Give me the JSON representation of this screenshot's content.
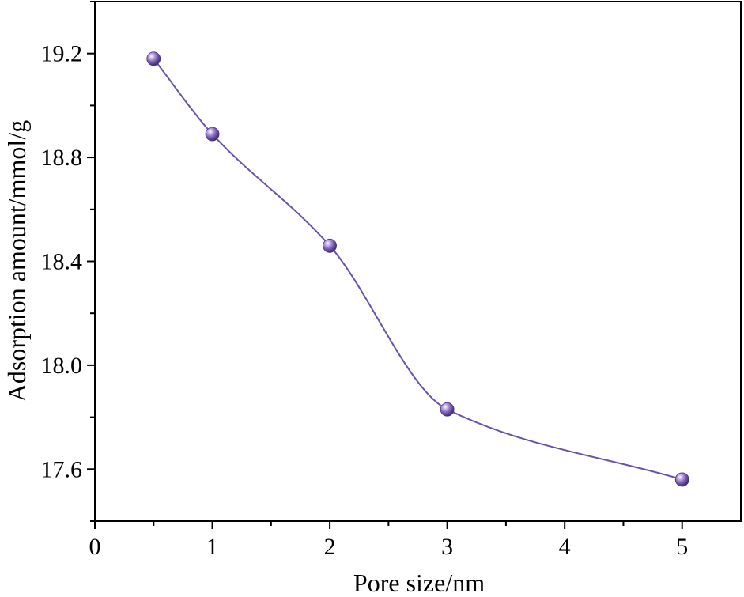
{
  "chart_data": {
    "type": "scatter",
    "title": "",
    "xlabel": "Pore size/nm",
    "ylabel": "Adsorption amount/mmol/g",
    "xlim": [
      0,
      5.5
    ],
    "ylim": [
      17.4,
      19.4
    ],
    "xticks": [
      0,
      1,
      2,
      3,
      4,
      5
    ],
    "xtick_labels": [
      "0",
      "1",
      "2",
      "3",
      "4",
      "5"
    ],
    "yticks": [
      17.6,
      18.0,
      18.4,
      18.8,
      19.2
    ],
    "ytick_labels": [
      "17.6",
      "18.0",
      "18.4",
      "18.8",
      "19.2"
    ],
    "grid": false,
    "legend": "none",
    "series": [
      {
        "x": [
          0.5,
          1,
          2,
          3,
          5
        ],
        "y": [
          19.18,
          18.89,
          18.46,
          17.83,
          17.56
        ],
        "marker_color": "#7b5fb3",
        "line_color": "#6a52a8",
        "fit_curve": "smooth"
      }
    ]
  }
}
